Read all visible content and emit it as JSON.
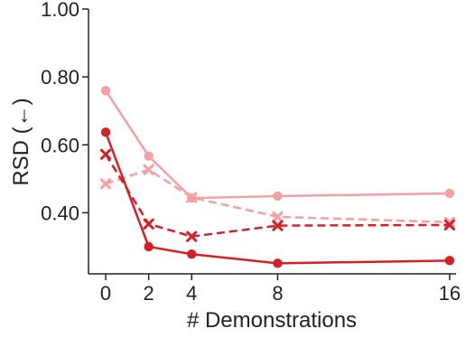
{
  "chart_data": {
    "type": "line",
    "title": "",
    "xlabel": "# Demonstrations",
    "ylabel": "RSD (←)",
    "x": [
      0,
      2,
      4,
      8,
      16
    ],
    "x_ticks": [
      "0",
      "2",
      "4",
      "8",
      "16"
    ],
    "y_ticks": [
      "0.40",
      "0.60",
      "0.80",
      "1.00"
    ],
    "y_tick_values": [
      0.4,
      0.6,
      0.8,
      1.0
    ],
    "ylim": [
      0.22,
      1.0
    ],
    "xlim": [
      -0.8,
      16.3
    ],
    "grid": false,
    "legend": "none",
    "series": [
      {
        "values": [
          0.76,
          0.567,
          0.443,
          0.449,
          0.457
        ],
        "color": "#f4a0a0",
        "line_style": "solid",
        "marker": "circle"
      },
      {
        "values": [
          0.485,
          0.527,
          0.445,
          0.388,
          0.372
        ],
        "color": "#f4a0a0",
        "line_style": "dashed",
        "marker": "x"
      },
      {
        "values": [
          0.572,
          0.367,
          0.33,
          0.362,
          0.364
        ],
        "color": "#d62027",
        "line_style": "dashed",
        "marker": "x"
      },
      {
        "values": [
          0.637,
          0.3,
          0.278,
          0.251,
          0.259
        ],
        "color": "#d62027",
        "line_style": "solid",
        "marker": "circle"
      }
    ]
  }
}
